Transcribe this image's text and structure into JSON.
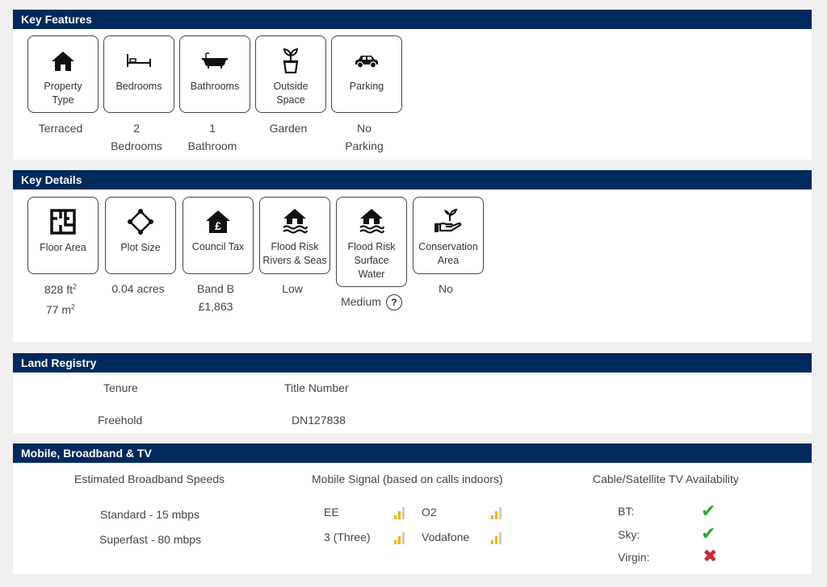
{
  "key_features": {
    "title": "Key Features",
    "items": [
      {
        "label": [
          "Property",
          "Type"
        ],
        "value": [
          "Terraced"
        ],
        "icon": "home-icon"
      },
      {
        "label": [
          "Bedrooms"
        ],
        "value": [
          "2",
          "Bedrooms"
        ],
        "icon": "bed-icon"
      },
      {
        "label": [
          "Bathrooms"
        ],
        "value": [
          "1",
          "Bathroom"
        ],
        "icon": "bathtub-icon"
      },
      {
        "label": [
          "Outside",
          "Space"
        ],
        "value": [
          "Garden"
        ],
        "icon": "plant-pot-icon"
      },
      {
        "label": [
          "Parking"
        ],
        "value": [
          "No",
          "Parking"
        ],
        "icon": "car-icon"
      }
    ]
  },
  "key_details": {
    "title": "Key Details",
    "items": [
      {
        "label": [
          "Floor Area"
        ],
        "value_lines": [
          {
            "text": "828 ft",
            "sup": "2"
          },
          {
            "text": "77 m",
            "sup": "2"
          }
        ],
        "icon": "floor-plan-icon"
      },
      {
        "label": [
          "Plot Size"
        ],
        "value_lines": [
          {
            "text": "0.04 acres"
          }
        ],
        "icon": "plot-diamond-icon"
      },
      {
        "label": [
          "Council Tax"
        ],
        "value_lines": [
          {
            "text": "Band B"
          },
          {
            "text": "£1,863"
          }
        ],
        "icon": "house-pound-icon"
      },
      {
        "label": [
          "Flood Risk",
          "Rivers & Seas"
        ],
        "value_lines": [
          {
            "text": "Low"
          }
        ],
        "icon": "flood-house-icon"
      },
      {
        "label": [
          "Flood Risk",
          "Surface",
          "Water"
        ],
        "value_lines": [
          {
            "text": "Medium"
          }
        ],
        "icon": "flood-house-icon",
        "help": "?"
      },
      {
        "label": [
          "Conservation",
          "Area"
        ],
        "value_lines": [
          {
            "text": "No"
          }
        ],
        "icon": "hand-plant-icon"
      }
    ]
  },
  "land_registry": {
    "title": "Land Registry",
    "tenure_label": "Tenure",
    "tenure_value": "Freehold",
    "title_number_label": "Title Number",
    "title_number_value": "DN127838"
  },
  "mobile": {
    "title": "Mobile, Broadband & TV",
    "broadband_heading": "Estimated Broadband Speeds",
    "broadband_standard": "Standard - 15 mbps",
    "broadband_superfast": "Superfast - 80 mbps",
    "signal_heading": "Mobile Signal (based on calls indoors)",
    "networks": [
      {
        "name": "EE",
        "bars": 2
      },
      {
        "name": "O2",
        "bars": 2
      },
      {
        "name": "3 (Three)",
        "bars": 2
      },
      {
        "name": "Vodafone",
        "bars": 2
      }
    ],
    "tv_heading": "Cable/Satellite TV Availability",
    "tv": [
      {
        "name": "BT:",
        "available": true
      },
      {
        "name": "Sky:",
        "available": true
      },
      {
        "name": "Virgin:",
        "available": false
      }
    ]
  },
  "colors": {
    "header": "#012a5c",
    "signal_on": "#f0b400",
    "signal_off": "#cccccc",
    "tick": "#3aa335",
    "cross": "#d0282e"
  }
}
